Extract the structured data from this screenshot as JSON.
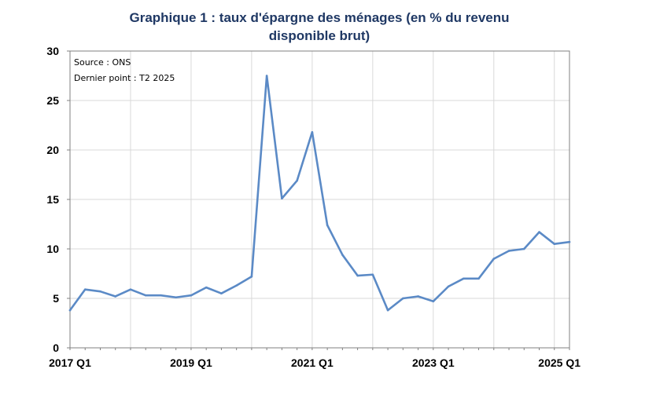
{
  "chart_data": {
    "type": "line",
    "title_lines": [
      "Graphique 1 : taux d'épargne des ménages (en % du revenu",
      "disponible brut)"
    ],
    "notes": [
      "Source : ONS",
      "Dernier point : T2 2025"
    ],
    "x": [
      "2017 Q1",
      "2017 Q2",
      "2017 Q3",
      "2017 Q4",
      "2018 Q1",
      "2018 Q2",
      "2018 Q3",
      "2018 Q4",
      "2019 Q1",
      "2019 Q2",
      "2019 Q3",
      "2019 Q4",
      "2020 Q1",
      "2020 Q2",
      "2020 Q3",
      "2020 Q4",
      "2021 Q1",
      "2021 Q2",
      "2021 Q3",
      "2021 Q4",
      "2022 Q1",
      "2022 Q2",
      "2022 Q3",
      "2022 Q4",
      "2023 Q1",
      "2023 Q2",
      "2023 Q3",
      "2023 Q4",
      "2024 Q1",
      "2024 Q2",
      "2024 Q3",
      "2024 Q4",
      "2025 Q1",
      "2025 Q2"
    ],
    "x_tick_labels": [
      {
        "index": 0,
        "label": "2017 Q1"
      },
      {
        "index": 8,
        "label": "2019 Q1"
      },
      {
        "index": 16,
        "label": "2021 Q1"
      },
      {
        "index": 24,
        "label": "2023 Q1"
      },
      {
        "index": 32,
        "label": "2025 Q1"
      }
    ],
    "series": [
      {
        "color": "#5b8ac6",
        "values": [
          3.8,
          5.9,
          5.7,
          5.2,
          5.9,
          5.3,
          5.3,
          5.1,
          5.3,
          6.1,
          5.5,
          6.3,
          7.2,
          27.5,
          15.1,
          16.9,
          21.8,
          12.4,
          9.4,
          7.3,
          7.4,
          3.8,
          5.0,
          5.2,
          4.7,
          6.2,
          7.0,
          7.0,
          9.0,
          9.8,
          10.0,
          11.7,
          10.5,
          10.7
        ]
      }
    ],
    "ylim": [
      0,
      30
    ],
    "y_ticks": [
      0,
      5,
      10,
      15,
      20,
      25,
      30
    ],
    "grid": true,
    "colors": {
      "title": "#1f3864",
      "grid": "#d9d9d9",
      "axis": "#808080"
    }
  }
}
